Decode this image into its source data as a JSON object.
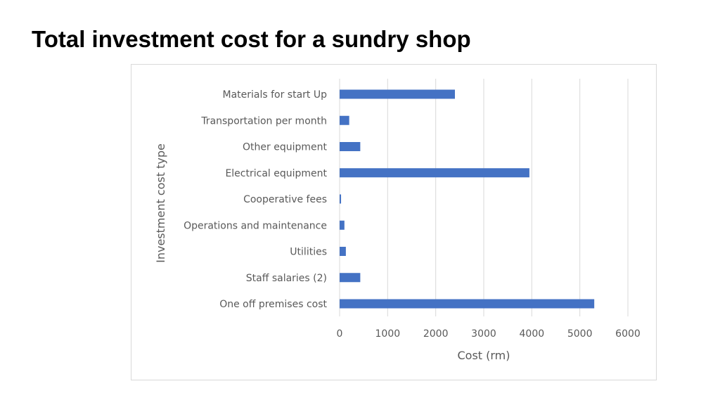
{
  "title": "Total investment cost for a sundry shop",
  "colors": {
    "bar": "#4472C4",
    "grid": "#d9d9d9",
    "text": "#595959"
  },
  "chart_data": {
    "type": "bar",
    "orientation": "horizontal",
    "xlabel": "Cost (rm)",
    "ylabel": "Investment cost type",
    "xlim": [
      0,
      6000
    ],
    "xticks": [
      0,
      1000,
      2000,
      3000,
      4000,
      5000,
      6000
    ],
    "grid": true,
    "legend": "none",
    "categories": [
      "Materials for start Up",
      "Transportation per month",
      "Other equipment",
      "Electrical equipment",
      "Cooperative fees",
      "Operations and maintenance",
      "Utilities",
      "Staff salaries (2)",
      "One off premises cost"
    ],
    "values": [
      2400,
      200,
      430,
      3950,
      30,
      100,
      130,
      430,
      5300
    ]
  }
}
